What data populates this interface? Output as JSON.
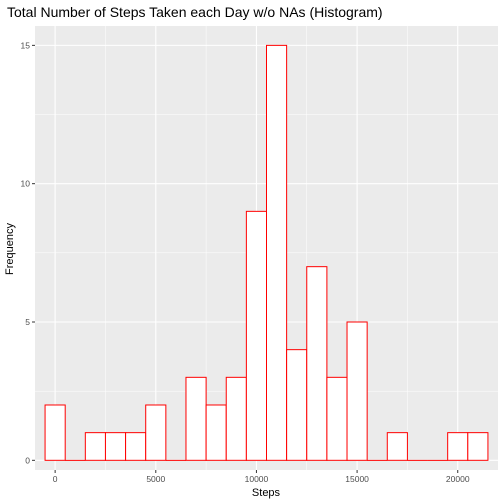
{
  "chart_data": {
    "type": "bar",
    "title": "Total Number of Steps Taken each Day w/o NAs (Histogram)",
    "xlabel": "Steps",
    "ylabel": "Frequency",
    "xlim": [
      -1000,
      22000
    ],
    "ylim": [
      -0.35,
      15.7
    ],
    "x_ticks": [
      0,
      5000,
      10000,
      15000,
      20000
    ],
    "y_ticks": [
      0,
      5,
      10,
      15
    ],
    "bin_width": 1000,
    "bins": [
      {
        "x": 0,
        "count": 2
      },
      {
        "x": 1000,
        "count": 0
      },
      {
        "x": 2000,
        "count": 1
      },
      {
        "x": 3000,
        "count": 1
      },
      {
        "x": 4000,
        "count": 1
      },
      {
        "x": 5000,
        "count": 2
      },
      {
        "x": 6000,
        "count": 0
      },
      {
        "x": 7000,
        "count": 3
      },
      {
        "x": 8000,
        "count": 2
      },
      {
        "x": 9000,
        "count": 3
      },
      {
        "x": 10000,
        "count": 9
      },
      {
        "x": 11000,
        "count": 15
      },
      {
        "x": 12000,
        "count": 4
      },
      {
        "x": 13000,
        "count": 7
      },
      {
        "x": 14000,
        "count": 3
      },
      {
        "x": 15000,
        "count": 5
      },
      {
        "x": 16000,
        "count": 0
      },
      {
        "x": 17000,
        "count": 1
      },
      {
        "x": 18000,
        "count": 0
      },
      {
        "x": 19000,
        "count": 0
      },
      {
        "x": 20000,
        "count": 1
      },
      {
        "x": 21000,
        "count": 1
      }
    ],
    "grid": true,
    "colors": {
      "panel": "#ebebeb",
      "grid": "#ffffff",
      "bar_fill": "#ffffff",
      "bar_outline": "#ff0000"
    }
  }
}
